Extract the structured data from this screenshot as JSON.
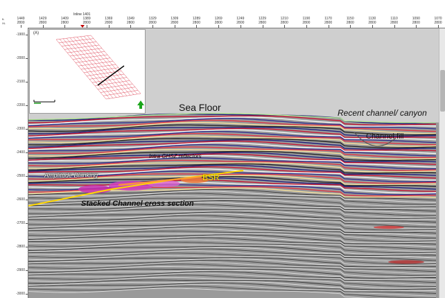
{
  "header": {
    "axis_labels": [
      "IL",
      "XL"
    ],
    "inline_marker_label": "Inline 1401",
    "columns": [
      {
        "top": "1449",
        "bottom": "2800"
      },
      {
        "top": "1429",
        "bottom": "2800"
      },
      {
        "top": "1409",
        "bottom": "2800"
      },
      {
        "top": "1389",
        "bottom": "2800"
      },
      {
        "top": "1369",
        "bottom": "2800"
      },
      {
        "top": "1349",
        "bottom": "2800"
      },
      {
        "top": "1329",
        "bottom": "2800"
      },
      {
        "top": "1309",
        "bottom": "2800"
      },
      {
        "top": "1289",
        "bottom": "2800"
      },
      {
        "top": "1269",
        "bottom": "2800"
      },
      {
        "top": "1249",
        "bottom": "2800"
      },
      {
        "top": "1229",
        "bottom": "2800"
      },
      {
        "top": "1210",
        "bottom": "2800"
      },
      {
        "top": "1190",
        "bottom": "2800"
      },
      {
        "top": "1170",
        "bottom": "2800"
      },
      {
        "top": "1150",
        "bottom": "2800"
      },
      {
        "top": "1130",
        "bottom": "2800"
      },
      {
        "top": "1110",
        "bottom": "2800"
      },
      {
        "top": "1090",
        "bottom": "2800"
      },
      {
        "top": "1070",
        "bottom": "2800"
      }
    ]
  },
  "depth_axis": {
    "labels": [
      "-1900",
      "-2000",
      "-2100",
      "-2200",
      "-2300",
      "-2400",
      "-2500",
      "-2600",
      "-2700",
      "-2800",
      "-2900",
      "-3000"
    ]
  },
  "inset": {
    "id_label": "(A)",
    "north_arrow_icon": "north-arrow-icon",
    "scale_bar_icon": "scale-bar-icon"
  },
  "annotations": {
    "sea_floor": "Sea Floor",
    "recent_channel": "Recent channel/ canyon",
    "channel_fill": "Channel fill",
    "intra_ghsz": "Intra GHSZ reflectors",
    "amplitude_blanking": "Amplitude Blanking",
    "bsr": "BSR",
    "stacked_channel": "Stacked Channel cross section"
  },
  "colors": {
    "sky": "#cfcfcf",
    "seismic_gray": "#9a9a9a",
    "positive_amplitude": "#2a2a8c",
    "negative_amplitude": "#c8102e",
    "bsr_line": "#ffd700",
    "inset_grid": "#e05060"
  }
}
